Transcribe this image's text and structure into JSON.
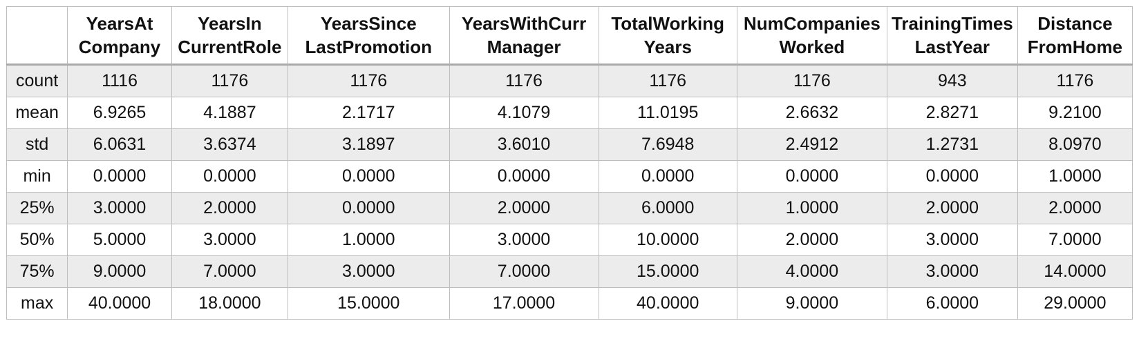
{
  "table": {
    "corner": "",
    "columns": [
      {
        "line1": "YearsAt",
        "line2": "Company"
      },
      {
        "line1": "YearsIn",
        "line2": "CurrentRole"
      },
      {
        "line1": "YearsSince",
        "line2": "LastPromotion"
      },
      {
        "line1": "YearsWithCurr",
        "line2": "Manager"
      },
      {
        "line1": "TotalWorking",
        "line2": "Years"
      },
      {
        "line1": "NumCompanies",
        "line2": "Worked"
      },
      {
        "line1": "TrainingTimes",
        "line2": "LastYear"
      },
      {
        "line1": "Distance",
        "line2": "FromHome"
      }
    ],
    "rows": [
      {
        "label": "count",
        "values": [
          "1116",
          "1176",
          "1176",
          "1176",
          "1176",
          "1176",
          "943",
          "1176"
        ]
      },
      {
        "label": "mean",
        "values": [
          "6.9265",
          "4.1887",
          "2.1717",
          "4.1079",
          "11.0195",
          "2.6632",
          "2.8271",
          "9.2100"
        ]
      },
      {
        "label": "std",
        "values": [
          "6.0631",
          "3.6374",
          "3.1897",
          "3.6010",
          "7.6948",
          "2.4912",
          "1.2731",
          "8.0970"
        ]
      },
      {
        "label": "min",
        "values": [
          "0.0000",
          "0.0000",
          "0.0000",
          "0.0000",
          "0.0000",
          "0.0000",
          "0.0000",
          "1.0000"
        ]
      },
      {
        "label": "25%",
        "values": [
          "3.0000",
          "2.0000",
          "0.0000",
          "2.0000",
          "6.0000",
          "1.0000",
          "2.0000",
          "2.0000"
        ]
      },
      {
        "label": "50%",
        "values": [
          "5.0000",
          "3.0000",
          "1.0000",
          "3.0000",
          "10.0000",
          "2.0000",
          "3.0000",
          "7.0000"
        ]
      },
      {
        "label": "75%",
        "values": [
          "9.0000",
          "7.0000",
          "3.0000",
          "7.0000",
          "15.0000",
          "4.0000",
          "3.0000",
          "14.0000"
        ]
      },
      {
        "label": "max",
        "values": [
          "40.0000",
          "18.0000",
          "15.0000",
          "17.0000",
          "40.0000",
          "9.0000",
          "6.0000",
          "29.0000"
        ]
      }
    ]
  },
  "colors": {
    "shaded_row": "#ececec",
    "grid": "#bdbdbd",
    "text": "#111111"
  }
}
